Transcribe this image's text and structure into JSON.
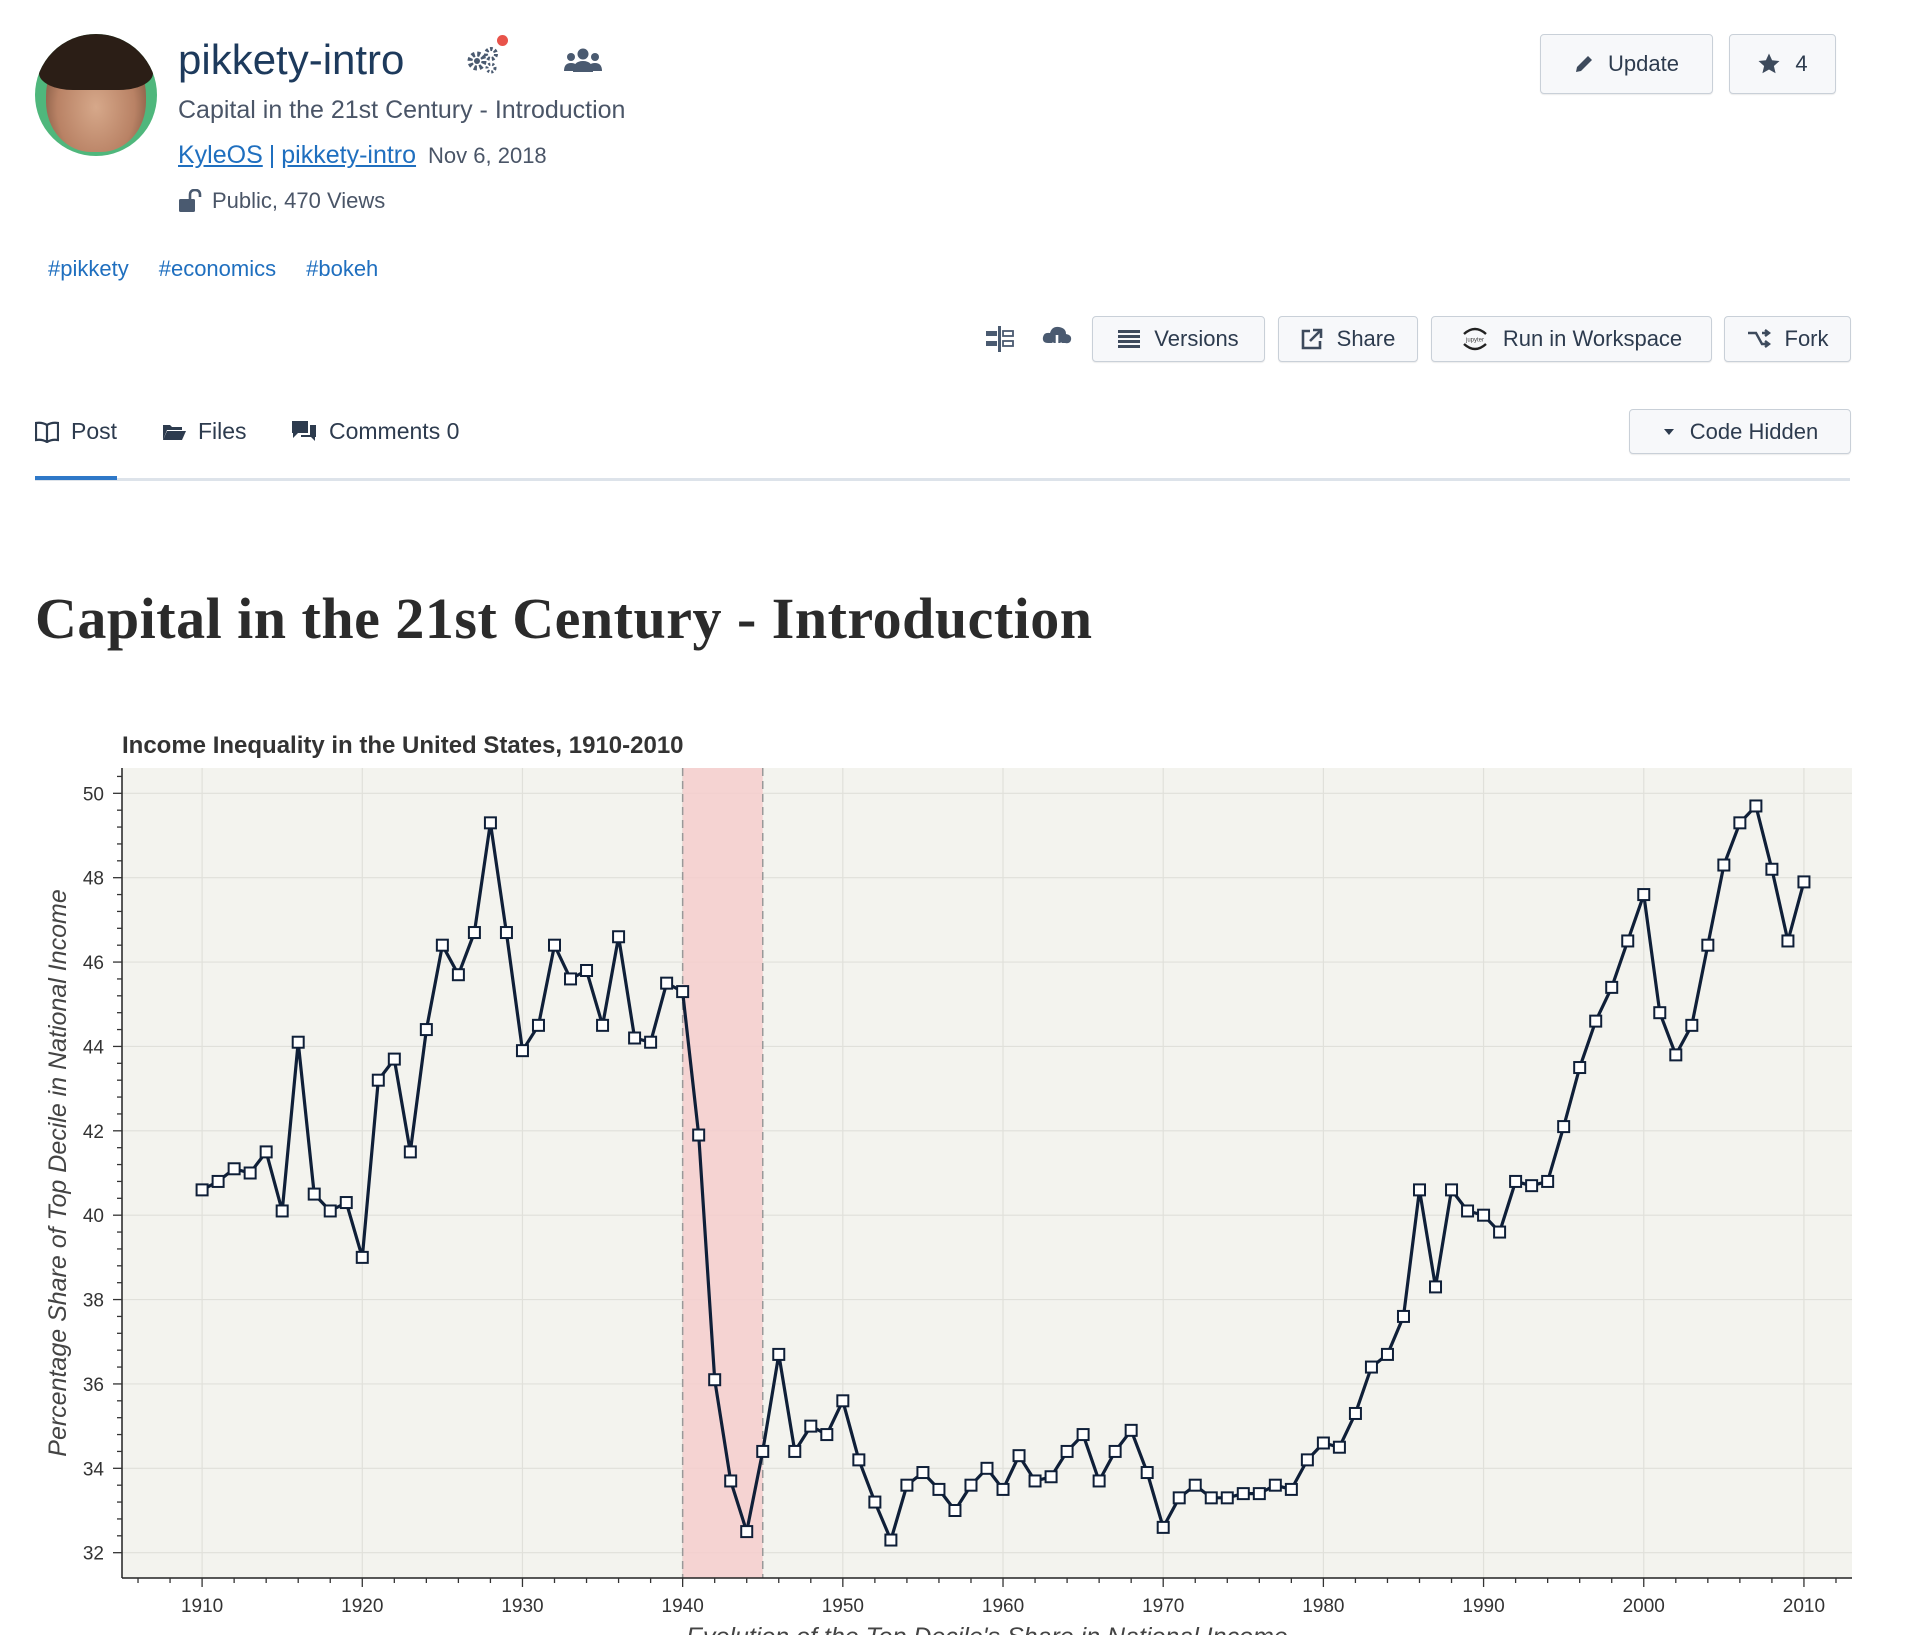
{
  "header": {
    "title": "pikkety-intro",
    "subtitle": "Capital in the 21st Century - Introduction",
    "author": "KyleOS",
    "separator": "|",
    "project": "pikkety-intro",
    "date": "Nov 6, 2018",
    "visibility": "Public, 470 Views",
    "update_label": "Update",
    "star_count": "4"
  },
  "tags": [
    "#pikkety",
    "#economics",
    "#bokeh"
  ],
  "toolbar": {
    "versions_label": "Versions",
    "share_label": "Share",
    "run_label": "Run in Workspace",
    "jupyter_label": "jupyter",
    "fork_label": "Fork",
    "code_hidden_label": "Code Hidden"
  },
  "tabs": [
    {
      "label": "Post",
      "active": true
    },
    {
      "label": "Files",
      "active": false
    },
    {
      "label": "Comments 0",
      "active": false
    }
  ],
  "page_heading": "Capital in the 21st Century - Introduction",
  "colors": {
    "accent": "#2e78c8",
    "link": "#1f6fbf",
    "line": "#0f1f38",
    "plot_bg": "#f3f3ee",
    "highlight": "#f5cccc"
  },
  "chart_data": {
    "type": "line",
    "title": "Income Inequality in the United States, 1910-2010",
    "xlabel": "Evolution of the Top Decile's Share in National Income",
    "ylabel": "Percentage Share of Top Decile in National Income",
    "xlim": [
      1905,
      2013
    ],
    "ylim": [
      31.4,
      50.6
    ],
    "xticks": [
      1910,
      1920,
      1930,
      1940,
      1950,
      1960,
      1970,
      1980,
      1990,
      2000,
      2010
    ],
    "yticks": [
      32,
      34,
      36,
      38,
      40,
      42,
      44,
      46,
      48,
      50
    ],
    "highlight_band": [
      1940,
      1945
    ],
    "grid": true,
    "marker": "square",
    "series": [
      {
        "x": [
          1910,
          1911,
          1912,
          1913,
          1914,
          1915,
          1916,
          1917,
          1918,
          1919,
          1920,
          1921,
          1922,
          1923,
          1924,
          1925,
          1926,
          1927,
          1928,
          1929,
          1930,
          1931,
          1932,
          1933,
          1934,
          1935,
          1936,
          1937,
          1938,
          1939,
          1940,
          1941,
          1942,
          1943,
          1944,
          1945,
          1946,
          1947,
          1948,
          1949,
          1950,
          1951,
          1952,
          1953,
          1954,
          1955,
          1956,
          1957,
          1958,
          1959,
          1960,
          1961,
          1962,
          1963,
          1964,
          1965,
          1966,
          1967,
          1968,
          1969,
          1970,
          1971,
          1972,
          1973,
          1974,
          1975,
          1976,
          1977,
          1978,
          1979,
          1980,
          1981,
          1982,
          1983,
          1984,
          1985,
          1986,
          1987,
          1988,
          1989,
          1990,
          1991,
          1992,
          1993,
          1994,
          1995,
          1996,
          1997,
          1998,
          1999,
          2000,
          2001,
          2002,
          2003,
          2004,
          2005,
          2006,
          2007,
          2008,
          2009,
          2010
        ],
        "values": [
          40.6,
          40.8,
          41.1,
          41.0,
          41.5,
          40.1,
          44.1,
          40.5,
          40.1,
          40.3,
          39.0,
          43.2,
          43.7,
          41.5,
          44.4,
          46.4,
          45.7,
          46.7,
          49.3,
          46.7,
          43.9,
          44.5,
          46.4,
          45.6,
          45.8,
          44.5,
          46.6,
          44.2,
          44.1,
          45.5,
          45.3,
          41.9,
          36.1,
          33.7,
          32.5,
          34.4,
          36.7,
          34.4,
          35.0,
          34.8,
          35.6,
          34.2,
          33.2,
          32.3,
          33.6,
          33.9,
          33.5,
          33.0,
          33.6,
          34.0,
          33.5,
          34.3,
          33.7,
          33.8,
          34.4,
          34.8,
          33.7,
          34.4,
          34.9,
          33.9,
          32.6,
          33.3,
          33.6,
          33.3,
          33.3,
          33.4,
          33.4,
          33.6,
          33.5,
          34.2,
          34.6,
          34.5,
          35.3,
          36.4,
          36.7,
          37.6,
          40.6,
          38.3,
          40.6,
          40.1,
          40.0,
          39.6,
          40.8,
          40.7,
          40.8,
          42.1,
          43.5,
          44.6,
          45.4,
          46.5,
          47.6,
          44.8,
          43.8,
          44.5,
          46.4,
          48.3,
          49.3,
          49.7,
          48.2,
          46.5,
          47.9
        ]
      }
    ]
  }
}
